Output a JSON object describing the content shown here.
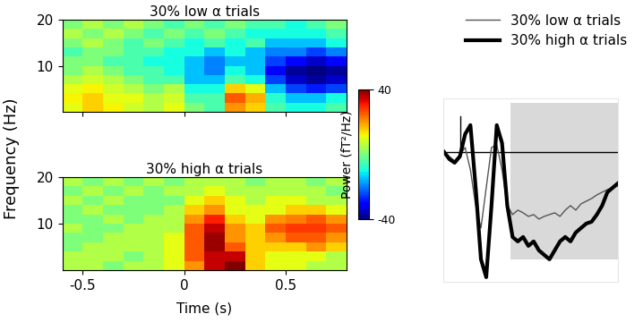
{
  "chart_data": [
    {
      "type": "heatmap",
      "title": "30% low α trials",
      "x_edges": [
        -0.6,
        -0.5,
        -0.4,
        -0.3,
        -0.2,
        -0.1,
        0,
        0.1,
        0.2,
        0.3,
        0.4,
        0.5,
        0.6,
        0.7,
        0.8
      ],
      "y_edges": [
        0,
        2,
        4,
        6,
        8,
        10,
        12,
        14,
        16,
        18,
        20
      ],
      "cells": [
        [
          10,
          15,
          12,
          8,
          5,
          10,
          0,
          -5,
          20,
          15,
          -5,
          -10,
          -10,
          -5
        ],
        [
          12,
          15,
          10,
          10,
          5,
          8,
          -5,
          -5,
          25,
          18,
          -8,
          -15,
          -15,
          -10
        ],
        [
          10,
          12,
          8,
          5,
          0,
          5,
          -10,
          -10,
          15,
          10,
          -15,
          -25,
          -28,
          -25
        ],
        [
          5,
          8,
          5,
          0,
          -5,
          -5,
          -15,
          -15,
          -5,
          -10,
          -25,
          -35,
          -38,
          -35
        ],
        [
          0,
          5,
          0,
          -5,
          -5,
          -10,
          -15,
          -20,
          -10,
          -15,
          -30,
          -38,
          -40,
          -38
        ],
        [
          0,
          0,
          -5,
          -5,
          -10,
          -10,
          -15,
          -20,
          -15,
          -15,
          -25,
          -30,
          -35,
          -30
        ],
        [
          -5,
          0,
          0,
          -5,
          -5,
          -10,
          -10,
          -15,
          -10,
          -15,
          -20,
          -20,
          -25,
          -20
        ],
        [
          0,
          5,
          0,
          -5,
          0,
          -5,
          -10,
          -5,
          -10,
          -5,
          -15,
          -15,
          -15,
          -10
        ],
        [
          5,
          0,
          5,
          0,
          -5,
          0,
          -5,
          0,
          -5,
          -10,
          -10,
          -10,
          -10,
          -5
        ],
        [
          0,
          5,
          0,
          5,
          0,
          -5,
          0,
          -5,
          0,
          -5,
          -5,
          -10,
          -5,
          0
        ]
      ],
      "xlim": [
        -0.6,
        0.8
      ],
      "ylim": [
        0,
        20
      ],
      "xticks": [
        -0.5,
        0,
        0.5
      ],
      "yticks": [
        10,
        20
      ],
      "tick_labels": "y",
      "y_label": "Frequency (Hz)"
    },
    {
      "type": "heatmap",
      "title": "30% high α trials",
      "x_edges": [
        -0.6,
        -0.5,
        -0.4,
        -0.3,
        -0.2,
        -0.1,
        0,
        0.1,
        0.2,
        0.3,
        0.4,
        0.5,
        0.6,
        0.7,
        0.8
      ],
      "y_edges": [
        0,
        2,
        4,
        6,
        8,
        10,
        12,
        14,
        16,
        18,
        20
      ],
      "cells": [
        [
          5,
          5,
          0,
          5,
          5,
          10,
          20,
          35,
          40,
          15,
          10,
          10,
          5,
          5
        ],
        [
          5,
          5,
          5,
          0,
          5,
          10,
          25,
          35,
          35,
          15,
          10,
          10,
          10,
          5
        ],
        [
          0,
          5,
          5,
          5,
          5,
          10,
          25,
          38,
          25,
          15,
          15,
          15,
          20,
          15
        ],
        [
          0,
          0,
          5,
          5,
          5,
          10,
          25,
          38,
          20,
          15,
          20,
          25,
          25,
          20
        ],
        [
          5,
          0,
          0,
          5,
          5,
          5,
          25,
          35,
          20,
          15,
          25,
          28,
          28,
          25
        ],
        [
          0,
          0,
          5,
          0,
          5,
          5,
          20,
          30,
          15,
          10,
          20,
          22,
          25,
          20
        ],
        [
          0,
          5,
          0,
          0,
          0,
          5,
          15,
          20,
          10,
          10,
          10,
          15,
          15,
          10
        ],
        [
          5,
          0,
          5,
          0,
          0,
          0,
          10,
          15,
          10,
          5,
          10,
          10,
          5,
          5
        ],
        [
          0,
          5,
          0,
          5,
          0,
          5,
          5,
          10,
          5,
          5,
          5,
          5,
          5,
          0
        ],
        [
          5,
          0,
          5,
          0,
          5,
          0,
          5,
          5,
          5,
          0,
          5,
          5,
          0,
          5
        ]
      ],
      "xlim": [
        -0.6,
        0.8
      ],
      "ylim": [
        0,
        20
      ],
      "xticks": [
        -0.5,
        0,
        0.5
      ],
      "yticks": [
        10,
        20
      ],
      "x_label": "Time (s)",
      "colorbar": {
        "label": "Power (fT²/Hz)",
        "range": [
          -40,
          40
        ],
        "ticks": [
          -40,
          40
        ]
      }
    },
    {
      "type": "line",
      "tick_labels": false,
      "legend": "upper right",
      "x": [
        -0.075,
        -0.05,
        -0.025,
        0,
        0.025,
        0.05,
        0.075,
        0.1,
        0.125,
        0.15,
        0.175,
        0.2,
        0.225,
        0.25,
        0.275,
        0.3,
        0.325,
        0.35,
        0.375,
        0.4,
        0.425,
        0.45,
        0.475,
        0.5,
        0.525,
        0.55,
        0.575,
        0.6,
        0.625,
        0.65,
        0.675,
        0.7,
        0.725,
        0.75
      ],
      "xlim": [
        -0.08,
        0.75
      ],
      "ylim": [
        -145,
        60
      ],
      "onset": {
        "x": 0,
        "y": [
          0,
          40
        ]
      },
      "shaded_region": {
        "x": [
          0.24,
          0.75
        ],
        "y": [
          -120,
          55
        ],
        "color": "#d9d9d9"
      },
      "series": [
        {
          "name": "30% low α trials",
          "color": "#555555",
          "values": [
            0,
            -5,
            -10,
            -3,
            5,
            -20,
            -60,
            -85,
            -40,
            5,
            8,
            -20,
            -60,
            -70,
            -65,
            -68,
            -72,
            -70,
            -75,
            -72,
            -70,
            -68,
            -72,
            -65,
            -60,
            -65,
            -58,
            -55,
            -52,
            -48,
            -45,
            -42,
            -40,
            -38
          ]
        },
        {
          "name": "30% high α trials",
          "color": "#000000",
          "values": [
            0,
            -8,
            -12,
            -5,
            20,
            30,
            -40,
            -120,
            -140,
            -60,
            30,
            10,
            -60,
            -95,
            -100,
            -95,
            -105,
            -100,
            -110,
            -115,
            -120,
            -110,
            -100,
            -95,
            -100,
            -90,
            -85,
            -80,
            -78,
            -70,
            -60,
            -45,
            -40,
            -35
          ]
        }
      ]
    }
  ]
}
